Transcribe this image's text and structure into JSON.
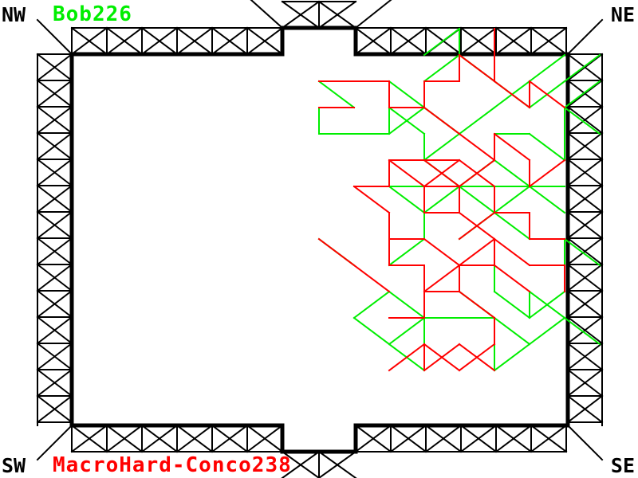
{
  "corners": {
    "nw": "NW",
    "ne": "NE",
    "sw": "SW",
    "se": "SE"
  },
  "players": {
    "top": {
      "name": "Bob226",
      "color": "#00ee00"
    },
    "bottom": {
      "name": "MacroHard-Conco238",
      "color": "#ff0000"
    }
  },
  "colors": {
    "wall": "#000000",
    "background": "#ffffff"
  }
}
